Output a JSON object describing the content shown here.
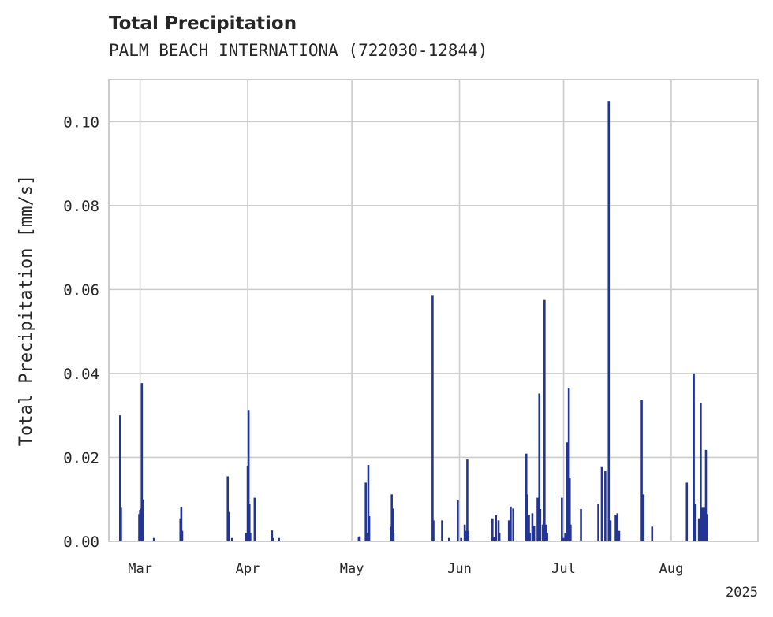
{
  "chart_data": {
    "type": "bar",
    "title": "Total Precipitation",
    "subtitle": "PALM BEACH INTERNATIONA (722030-12844)",
    "xlabel": "",
    "ylabel": "Total Precipitation [mm/s]",
    "year_label": "2025",
    "x_range": [
      "2025-02-20",
      "2025-08-26"
    ],
    "ylim": [
      0,
      0.11
    ],
    "grid": true,
    "legend": "none",
    "bar_color": "#233594",
    "x_ticks": [
      {
        "date": "2025-03-01",
        "label": "Mar"
      },
      {
        "date": "2025-04-01",
        "label": "Apr"
      },
      {
        "date": "2025-05-01",
        "label": "May"
      },
      {
        "date": "2025-06-01",
        "label": "Jun"
      },
      {
        "date": "2025-07-01",
        "label": "Jul"
      },
      {
        "date": "2025-08-01",
        "label": "Aug"
      }
    ],
    "y_ticks": [
      {
        "value": 0.0,
        "label": "0.00"
      },
      {
        "value": 0.02,
        "label": "0.02"
      },
      {
        "value": 0.04,
        "label": "0.04"
      },
      {
        "value": 0.06,
        "label": "0.06"
      },
      {
        "value": 0.08,
        "label": "0.08"
      },
      {
        "value": 0.1,
        "label": "0.10"
      }
    ],
    "x": [
      "2025-02-23T06:00",
      "2025-02-23T12:00",
      "2025-02-28T18:00",
      "2025-03-01T00:00",
      "2025-03-01T06:00",
      "2025-03-01T12:00",
      "2025-03-01T18:00",
      "2025-03-05T00:00",
      "2025-03-12T15:00",
      "2025-03-12T21:00",
      "2025-03-13T03:00",
      "2025-03-26T06:00",
      "2025-03-26T12:00",
      "2025-03-27T12:00",
      "2025-03-31T12:00",
      "2025-03-31T18:00",
      "2025-04-01T00:00",
      "2025-04-01T06:00",
      "2025-04-01T12:00",
      "2025-04-01T18:00",
      "2025-04-03T00:00",
      "2025-04-08T00:00",
      "2025-04-08T06:00",
      "2025-04-10T00:00",
      "2025-05-03T00:00",
      "2025-05-03T06:00",
      "2025-05-05T00:00",
      "2025-05-05T06:00",
      "2025-05-05T18:00",
      "2025-05-06T00:00",
      "2025-05-12T06:00",
      "2025-05-12T12:00",
      "2025-05-12T18:00",
      "2025-05-13T00:00",
      "2025-05-24T06:00",
      "2025-05-24T12:00",
      "2025-05-27T00:00",
      "2025-05-29T00:00",
      "2025-05-31T12:00",
      "2025-06-01T12:00",
      "2025-06-02T12:00",
      "2025-06-02T18:00",
      "2025-06-03T06:00",
      "2025-06-03T12:00",
      "2025-06-10T12:00",
      "2025-06-11T00:00",
      "2025-06-11T12:00",
      "2025-06-12T06:00",
      "2025-06-12T12:00",
      "2025-06-15T06:00",
      "2025-06-15T18:00",
      "2025-06-16T12:00",
      "2025-06-20T06:00",
      "2025-06-20T12:00",
      "2025-06-21T00:00",
      "2025-06-21T06:00",
      "2025-06-22T00:00",
      "2025-06-22T12:00",
      "2025-06-23T12:00",
      "2025-06-24T00:00",
      "2025-06-24T06:00",
      "2025-06-25T00:00",
      "2025-06-25T06:00",
      "2025-06-25T12:00",
      "2025-06-26T00:00",
      "2025-06-26T06:00",
      "2025-06-30T12:00",
      "2025-07-01T00:00",
      "2025-07-01T12:00",
      "2025-07-02T00:00",
      "2025-07-02T06:00",
      "2025-07-02T12:00",
      "2025-07-02T18:00",
      "2025-07-03T00:00",
      "2025-07-06T00:00",
      "2025-07-11T00:00",
      "2025-07-12T00:00",
      "2025-07-13T00:00",
      "2025-07-14T00:00",
      "2025-07-14T12:00",
      "2025-07-16T00:00",
      "2025-07-16T12:00",
      "2025-07-17T00:00",
      "2025-07-23T12:00",
      "2025-07-24T00:00",
      "2025-07-26T12:00",
      "2025-08-05T12:00",
      "2025-08-07T12:00",
      "2025-08-08T00:00",
      "2025-08-09T00:00",
      "2025-08-09T12:00",
      "2025-08-10T00:00",
      "2025-08-10T12:00",
      "2025-08-11T00:00",
      "2025-08-11T06:00"
    ],
    "values": [
      0.03,
      0.008,
      0.0065,
      0.0075,
      0.0078,
      0.0377,
      0.01,
      0.0008,
      0.0055,
      0.0082,
      0.0025,
      0.0155,
      0.007,
      0.0008,
      0.002,
      0.0012,
      0.018,
      0.0313,
      0.009,
      0.002,
      0.0104,
      0.0026,
      0.0008,
      0.0008,
      0.001,
      0.0012,
      0.014,
      0.002,
      0.0182,
      0.006,
      0.0035,
      0.0112,
      0.0078,
      0.002,
      0.0585,
      0.005,
      0.005,
      0.0008,
      0.0098,
      0.0008,
      0.004,
      0.0025,
      0.0195,
      0.0025,
      0.0055,
      0.001,
      0.0062,
      0.005,
      0.002,
      0.005,
      0.0083,
      0.0078,
      0.0209,
      0.0112,
      0.0062,
      0.002,
      0.0067,
      0.0037,
      0.0104,
      0.0352,
      0.0077,
      0.004,
      0.005,
      0.0575,
      0.004,
      0.002,
      0.0104,
      0.0008,
      0.002,
      0.0236,
      0.003,
      0.0366,
      0.015,
      0.004,
      0.0077,
      0.009,
      0.0177,
      0.0167,
      0.1049,
      0.005,
      0.0062,
      0.0067,
      0.0025,
      0.0337,
      0.0112,
      0.0035,
      0.014,
      0.04,
      0.009,
      0.0055,
      0.0329,
      0.008,
      0.008,
      0.0218,
      0.0065
    ]
  }
}
